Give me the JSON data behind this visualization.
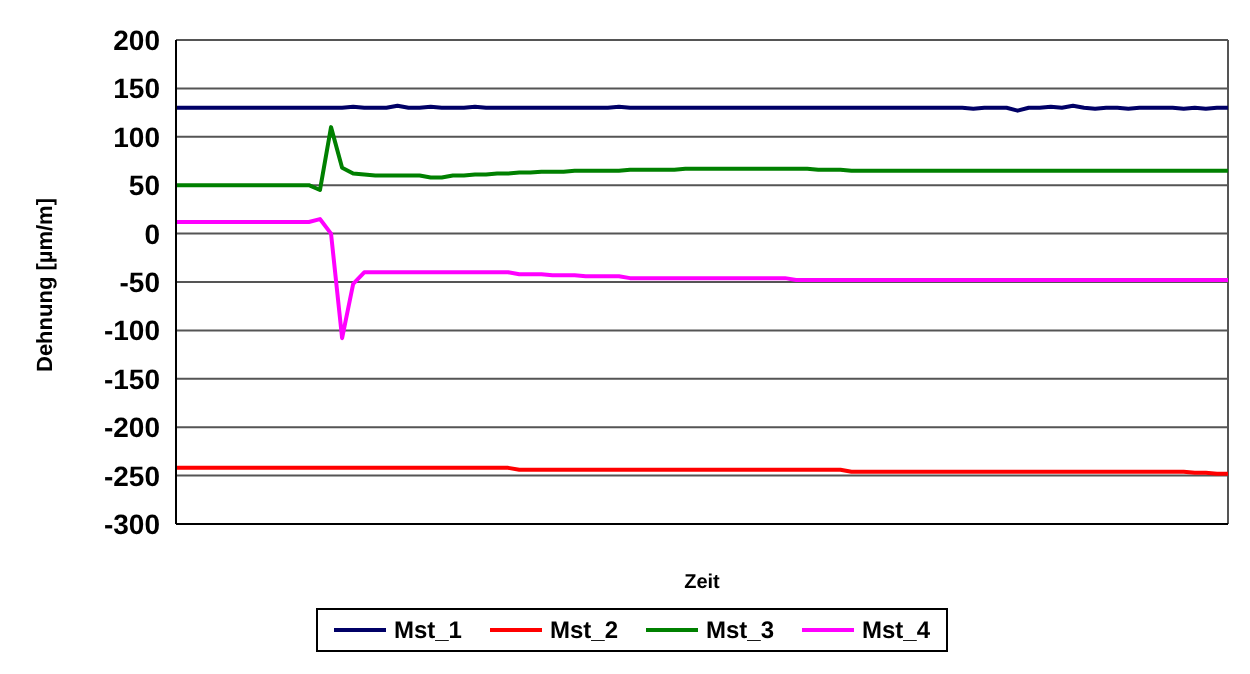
{
  "chart_data": {
    "type": "line",
    "xlabel": "Zeit",
    "ylabel": "Dehnung [µm/m]",
    "categories": [
      null,
      null,
      null,
      null,
      null,
      null,
      null,
      null,
      null,
      null,
      null,
      null,
      null,
      null,
      null,
      null,
      null,
      null,
      null,
      null,
      null,
      null,
      null,
      null,
      null,
      null,
      null,
      null,
      null,
      null,
      null,
      null,
      null,
      null,
      null,
      null,
      null,
      null,
      null,
      null,
      null,
      null,
      null,
      null,
      null,
      null,
      null,
      null,
      null,
      null,
      null,
      null,
      null,
      null,
      null,
      null,
      null,
      null,
      null,
      null,
      null,
      null,
      null,
      null,
      null,
      null,
      null,
      null,
      null,
      null,
      null,
      null,
      null,
      null,
      null,
      null,
      null,
      null,
      null,
      null,
      null,
      null,
      null,
      null,
      null,
      null,
      null,
      null,
      null,
      null,
      null,
      null,
      null,
      null,
      null,
      null
    ],
    "series": [
      {
        "name": "Mst_1",
        "color": "#000066",
        "values": [
          130,
          130,
          130,
          130,
          130,
          130,
          130,
          130,
          130,
          130,
          130,
          130,
          130,
          130,
          130,
          130,
          131,
          130,
          130,
          130,
          132,
          130,
          130,
          131,
          130,
          130,
          130,
          131,
          130,
          130,
          130,
          130,
          130,
          130,
          130,
          130,
          130,
          130,
          130,
          130,
          131,
          130,
          130,
          130,
          130,
          130,
          130,
          130,
          130,
          130,
          130,
          130,
          130,
          130,
          130,
          130,
          130,
          130,
          130,
          130,
          130,
          130,
          130,
          130,
          130,
          130,
          130,
          130,
          130,
          130,
          130,
          130,
          129,
          130,
          130,
          130,
          127,
          130,
          130,
          131,
          130,
          132,
          130,
          129,
          130,
          130,
          129,
          130,
          130,
          130,
          130,
          129,
          130,
          129,
          130,
          130
        ]
      },
      {
        "name": "Mst_2",
        "color": "#ff0000",
        "values": [
          -242,
          -242,
          -242,
          -242,
          -242,
          -242,
          -242,
          -242,
          -242,
          -242,
          -242,
          -242,
          -242,
          -242,
          -242,
          -242,
          -242,
          -242,
          -242,
          -242,
          -242,
          -242,
          -242,
          -242,
          -242,
          -242,
          -242,
          -242,
          -242,
          -242,
          -242,
          -244,
          -244,
          -244,
          -244,
          -244,
          -244,
          -244,
          -244,
          -244,
          -244,
          -244,
          -244,
          -244,
          -244,
          -244,
          -244,
          -244,
          -244,
          -244,
          -244,
          -244,
          -244,
          -244,
          -244,
          -244,
          -244,
          -244,
          -244,
          -244,
          -244,
          -246,
          -246,
          -246,
          -246,
          -246,
          -246,
          -246,
          -246,
          -246,
          -246,
          -246,
          -246,
          -246,
          -246,
          -246,
          -246,
          -246,
          -246,
          -246,
          -246,
          -246,
          -246,
          -246,
          -246,
          -246,
          -246,
          -246,
          -246,
          -246,
          -246,
          -246,
          -247,
          -247,
          -248,
          -248
        ]
      },
      {
        "name": "Mst_3",
        "color": "#008000",
        "values": [
          50,
          50,
          50,
          50,
          50,
          50,
          50,
          50,
          50,
          50,
          50,
          50,
          50,
          45,
          110,
          68,
          62,
          61,
          60,
          60,
          60,
          60,
          60,
          58,
          58,
          60,
          60,
          61,
          61,
          62,
          62,
          63,
          63,
          64,
          64,
          64,
          65,
          65,
          65,
          65,
          65,
          66,
          66,
          66,
          66,
          66,
          67,
          67,
          67,
          67,
          67,
          67,
          67,
          67,
          67,
          67,
          67,
          67,
          66,
          66,
          66,
          65,
          65,
          65,
          65,
          65,
          65,
          65,
          65,
          65,
          65,
          65,
          65,
          65,
          65,
          65,
          65,
          65,
          65,
          65,
          65,
          65,
          65,
          65,
          65,
          65,
          65,
          65,
          65,
          65,
          65,
          65,
          65,
          65,
          65,
          65
        ]
      },
      {
        "name": "Mst_4",
        "color": "#ff00ff",
        "values": [
          12,
          12,
          12,
          12,
          12,
          12,
          12,
          12,
          12,
          12,
          12,
          12,
          12,
          15,
          0,
          -108,
          -52,
          -40,
          -40,
          -40,
          -40,
          -40,
          -40,
          -40,
          -40,
          -40,
          -40,
          -40,
          -40,
          -40,
          -40,
          -42,
          -42,
          -42,
          -43,
          -43,
          -43,
          -44,
          -44,
          -44,
          -44,
          -46,
          -46,
          -46,
          -46,
          -46,
          -46,
          -46,
          -46,
          -46,
          -46,
          -46,
          -46,
          -46,
          -46,
          -46,
          -48,
          -48,
          -48,
          -48,
          -48,
          -48,
          -48,
          -48,
          -48,
          -48,
          -48,
          -48,
          -48,
          -48,
          -48,
          -48,
          -48,
          -48,
          -48,
          -48,
          -48,
          -48,
          -48,
          -48,
          -48,
          -48,
          -48,
          -48,
          -48,
          -48,
          -48,
          -48,
          -48,
          -48,
          -48,
          -48,
          -48,
          -48,
          -48,
          -48
        ]
      }
    ],
    "ylim": [
      -300,
      200
    ],
    "yticks": [
      -300,
      -250,
      -200,
      -150,
      -100,
      -50,
      0,
      50,
      100,
      150,
      200
    ],
    "grid": true,
    "legend": "bottom",
    "tick_labels": "y",
    "marker": "none",
    "line_style": "solid"
  }
}
